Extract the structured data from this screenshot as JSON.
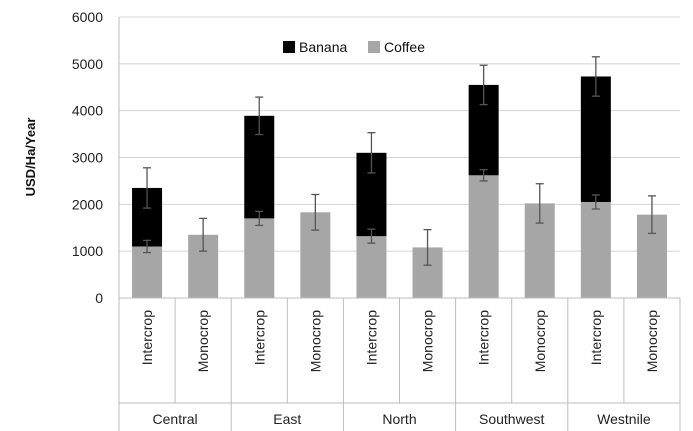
{
  "chart_data": {
    "type": "bar",
    "stacked": true,
    "ylabel": "USD/Ha/Year",
    "xlabel": "",
    "ylim": [
      0,
      6000
    ],
    "yticks": [
      0,
      1000,
      2000,
      3000,
      4000,
      5000,
      6000
    ],
    "grid": true,
    "legend": {
      "placement": "top-center",
      "entries": [
        "Banana",
        "Coffee"
      ]
    },
    "groups": [
      {
        "name": "Central",
        "categories": [
          "Intercrop",
          "Monocrop"
        ]
      },
      {
        "name": "East",
        "categories": [
          "Intercrop",
          "Monocrop"
        ]
      },
      {
        "name": "North",
        "categories": [
          "Intercrop",
          "Monocrop"
        ]
      },
      {
        "name": "Southwest",
        "categories": [
          "Intercrop",
          "Monocrop"
        ]
      },
      {
        "name": "Westnile",
        "categories": [
          "Intercrop",
          "Monocrop"
        ]
      }
    ],
    "categories": [
      "Intercrop",
      "Monocrop",
      "Intercrop",
      "Monocrop",
      "Intercrop",
      "Monocrop",
      "Intercrop",
      "Monocrop",
      "Intercrop",
      "Monocrop"
    ],
    "series": [
      {
        "name": "Coffee",
        "color": "#a6a6a6",
        "values": [
          1100,
          1350,
          1700,
          1830,
          1320,
          1080,
          2620,
          2020,
          2050,
          1780
        ],
        "error": [
          130,
          350,
          150,
          380,
          150,
          380,
          120,
          420,
          150,
          400
        ]
      },
      {
        "name": "Banana",
        "color": "#000000",
        "values": [
          1250,
          0,
          2190,
          0,
          1780,
          0,
          1930,
          0,
          2680,
          0
        ],
        "error": [
          430,
          0,
          400,
          0,
          430,
          0,
          420,
          0,
          420,
          0
        ]
      }
    ]
  }
}
